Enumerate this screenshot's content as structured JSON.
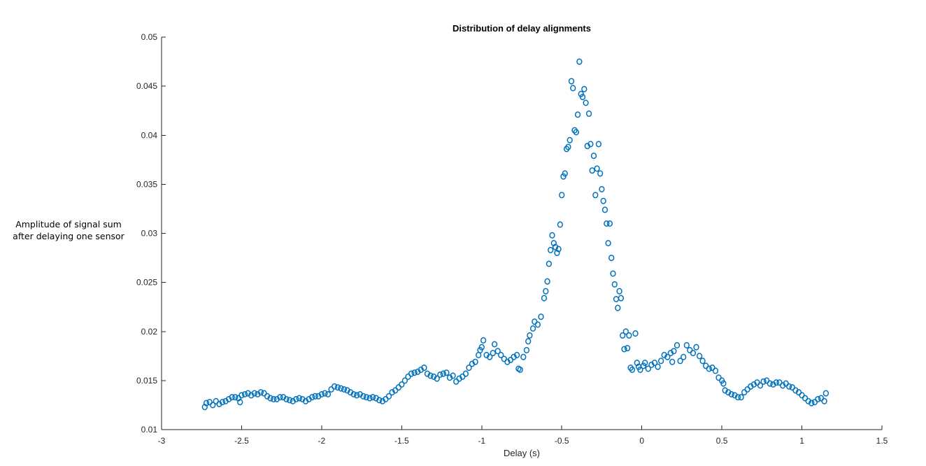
{
  "chart_data": {
    "type": "scatter",
    "title": "Distribution of delay alignments",
    "xlabel": "Delay (s)",
    "ylabel": [
      "Amplitude of signal sum",
      "after delaying one sensor"
    ],
    "xlim": [
      -3,
      1.5
    ],
    "ylim": [
      0.01,
      0.05
    ],
    "xticks": [
      -3,
      -2.5,
      -2,
      -1.5,
      -1,
      -0.5,
      0,
      0.5,
      1,
      1.5
    ],
    "xtick_labels": [
      "-3",
      "-2.5",
      "-2",
      "-1.5",
      "-1",
      "-0.5",
      "0",
      "0.5",
      "1",
      "1.5"
    ],
    "yticks": [
      0.01,
      0.015,
      0.02,
      0.025,
      0.03,
      0.035,
      0.04,
      0.045,
      0.05
    ],
    "ytick_labels": [
      "0.01",
      "0.015",
      "0.02",
      "0.025",
      "0.03",
      "0.035",
      "0.04",
      "0.045",
      "0.05"
    ],
    "marker": "circle-open",
    "color": "#0072BD",
    "grid": false,
    "points": [
      [
        -2.73,
        0.0123
      ],
      [
        -2.72,
        0.0127
      ],
      [
        -2.7,
        0.0128
      ],
      [
        -2.68,
        0.0125
      ],
      [
        -2.66,
        0.0129
      ],
      [
        -2.64,
        0.0126
      ],
      [
        -2.62,
        0.0128
      ],
      [
        -2.6,
        0.0129
      ],
      [
        -2.58,
        0.0131
      ],
      [
        -2.56,
        0.0133
      ],
      [
        -2.54,
        0.0133
      ],
      [
        -2.52,
        0.0132
      ],
      [
        -2.51,
        0.0128
      ],
      [
        -2.5,
        0.0135
      ],
      [
        -2.48,
        0.0136
      ],
      [
        -2.46,
        0.0137
      ],
      [
        -2.44,
        0.0135
      ],
      [
        -2.42,
        0.0137
      ],
      [
        -2.4,
        0.0136
      ],
      [
        -2.38,
        0.0138
      ],
      [
        -2.36,
        0.0137
      ],
      [
        -2.34,
        0.0134
      ],
      [
        -2.32,
        0.0132
      ],
      [
        -2.3,
        0.0131
      ],
      [
        -2.28,
        0.0131
      ],
      [
        -2.26,
        0.0133
      ],
      [
        -2.24,
        0.0133
      ],
      [
        -2.22,
        0.0131
      ],
      [
        -2.2,
        0.013
      ],
      [
        -2.18,
        0.0129
      ],
      [
        -2.16,
        0.0131
      ],
      [
        -2.14,
        0.0132
      ],
      [
        -2.12,
        0.0131
      ],
      [
        -2.1,
        0.0129
      ],
      [
        -2.08,
        0.0131
      ],
      [
        -2.06,
        0.0133
      ],
      [
        -2.04,
        0.0134
      ],
      [
        -2.02,
        0.0134
      ],
      [
        -2.0,
        0.0136
      ],
      [
        -1.98,
        0.0137
      ],
      [
        -1.96,
        0.0136
      ],
      [
        -1.94,
        0.0141
      ],
      [
        -1.92,
        0.0144
      ],
      [
        -1.9,
        0.0143
      ],
      [
        -1.88,
        0.0142
      ],
      [
        -1.86,
        0.0141
      ],
      [
        -1.84,
        0.014
      ],
      [
        -1.82,
        0.0138
      ],
      [
        -1.8,
        0.0136
      ],
      [
        -1.78,
        0.0135
      ],
      [
        -1.76,
        0.0136
      ],
      [
        -1.74,
        0.0134
      ],
      [
        -1.72,
        0.0133
      ],
      [
        -1.7,
        0.0132
      ],
      [
        -1.68,
        0.0133
      ],
      [
        -1.66,
        0.0132
      ],
      [
        -1.64,
        0.013
      ],
      [
        -1.62,
        0.0129
      ],
      [
        -1.6,
        0.0131
      ],
      [
        -1.58,
        0.0134
      ],
      [
        -1.56,
        0.0138
      ],
      [
        -1.54,
        0.014
      ],
      [
        -1.52,
        0.0143
      ],
      [
        -1.5,
        0.0146
      ],
      [
        -1.48,
        0.015
      ],
      [
        -1.46,
        0.0154
      ],
      [
        -1.44,
        0.0157
      ],
      [
        -1.42,
        0.0158
      ],
      [
        -1.4,
        0.0159
      ],
      [
        -1.38,
        0.0161
      ],
      [
        -1.36,
        0.0163
      ],
      [
        -1.34,
        0.0157
      ],
      [
        -1.32,
        0.0155
      ],
      [
        -1.3,
        0.0154
      ],
      [
        -1.28,
        0.0152
      ],
      [
        -1.26,
        0.0156
      ],
      [
        -1.24,
        0.0157
      ],
      [
        -1.22,
        0.0158
      ],
      [
        -1.2,
        0.0153
      ],
      [
        -1.18,
        0.0155
      ],
      [
        -1.16,
        0.0149
      ],
      [
        -1.14,
        0.0152
      ],
      [
        -1.12,
        0.0154
      ],
      [
        -1.1,
        0.0157
      ],
      [
        -1.08,
        0.0163
      ],
      [
        -1.06,
        0.0167
      ],
      [
        -1.04,
        0.0169
      ],
      [
        -1.02,
        0.0176
      ],
      [
        -1.01,
        0.0181
      ],
      [
        -1.0,
        0.0184
      ],
      [
        -0.99,
        0.0191
      ],
      [
        -0.97,
        0.0176
      ],
      [
        -0.95,
        0.0174
      ],
      [
        -0.93,
        0.0178
      ],
      [
        -0.92,
        0.0187
      ],
      [
        -0.9,
        0.018
      ],
      [
        -0.88,
        0.0176
      ],
      [
        -0.86,
        0.0172
      ],
      [
        -0.84,
        0.0169
      ],
      [
        -0.82,
        0.0171
      ],
      [
        -0.8,
        0.0174
      ],
      [
        -0.78,
        0.0176
      ],
      [
        -0.77,
        0.0162
      ],
      [
        -0.76,
        0.0161
      ],
      [
        -0.74,
        0.0174
      ],
      [
        -0.72,
        0.0181
      ],
      [
        -0.71,
        0.019
      ],
      [
        -0.7,
        0.0196
      ],
      [
        -0.68,
        0.0203
      ],
      [
        -0.67,
        0.021
      ],
      [
        -0.65,
        0.0207
      ],
      [
        -0.63,
        0.0215
      ],
      [
        -0.61,
        0.0234
      ],
      [
        -0.6,
        0.0241
      ],
      [
        -0.59,
        0.0251
      ],
      [
        -0.58,
        0.0269
      ],
      [
        -0.57,
        0.0283
      ],
      [
        -0.56,
        0.0298
      ],
      [
        -0.55,
        0.029
      ],
      [
        -0.54,
        0.0286
      ],
      [
        -0.53,
        0.028
      ],
      [
        -0.52,
        0.0284
      ],
      [
        -0.51,
        0.0309
      ],
      [
        -0.5,
        0.0339
      ],
      [
        -0.49,
        0.0358
      ],
      [
        -0.48,
        0.0361
      ],
      [
        -0.47,
        0.0386
      ],
      [
        -0.46,
        0.0388
      ],
      [
        -0.45,
        0.0395
      ],
      [
        -0.44,
        0.0455
      ],
      [
        -0.43,
        0.0448
      ],
      [
        -0.42,
        0.0405
      ],
      [
        -0.41,
        0.0403
      ],
      [
        -0.4,
        0.0421
      ],
      [
        -0.39,
        0.0475
      ],
      [
        -0.38,
        0.0442
      ],
      [
        -0.37,
        0.0439
      ],
      [
        -0.36,
        0.0447
      ],
      [
        -0.35,
        0.0433
      ],
      [
        -0.34,
        0.0389
      ],
      [
        -0.33,
        0.0422
      ],
      [
        -0.32,
        0.0391
      ],
      [
        -0.31,
        0.0364
      ],
      [
        -0.3,
        0.0379
      ],
      [
        -0.29,
        0.0339
      ],
      [
        -0.28,
        0.0366
      ],
      [
        -0.27,
        0.0391
      ],
      [
        -0.26,
        0.0361
      ],
      [
        -0.25,
        0.0345
      ],
      [
        -0.24,
        0.0333
      ],
      [
        -0.23,
        0.0324
      ],
      [
        -0.22,
        0.031
      ],
      [
        -0.21,
        0.029
      ],
      [
        -0.2,
        0.031
      ],
      [
        -0.19,
        0.0275
      ],
      [
        -0.18,
        0.0259
      ],
      [
        -0.17,
        0.0248
      ],
      [
        -0.16,
        0.0233
      ],
      [
        -0.15,
        0.0224
      ],
      [
        -0.14,
        0.0241
      ],
      [
        -0.13,
        0.0234
      ],
      [
        -0.12,
        0.0196
      ],
      [
        -0.11,
        0.0182
      ],
      [
        -0.1,
        0.02
      ],
      [
        -0.09,
        0.0183
      ],
      [
        -0.08,
        0.0196
      ],
      [
        -0.07,
        0.0163
      ],
      [
        -0.06,
        0.0161
      ],
      [
        -0.04,
        0.0198
      ],
      [
        -0.03,
        0.0168
      ],
      [
        -0.02,
        0.0164
      ],
      [
        -0.01,
        0.0161
      ],
      [
        0.01,
        0.0165
      ],
      [
        0.02,
        0.0168
      ],
      [
        0.04,
        0.0162
      ],
      [
        0.06,
        0.0166
      ],
      [
        0.08,
        0.0168
      ],
      [
        0.1,
        0.0164
      ],
      [
        0.12,
        0.017
      ],
      [
        0.14,
        0.0176
      ],
      [
        0.16,
        0.0174
      ],
      [
        0.18,
        0.0178
      ],
      [
        0.19,
        0.0169
      ],
      [
        0.2,
        0.018
      ],
      [
        0.22,
        0.0186
      ],
      [
        0.24,
        0.017
      ],
      [
        0.26,
        0.0174
      ],
      [
        0.28,
        0.0186
      ],
      [
        0.3,
        0.0181
      ],
      [
        0.32,
        0.0178
      ],
      [
        0.34,
        0.0184
      ],
      [
        0.36,
        0.0175
      ],
      [
        0.38,
        0.017
      ],
      [
        0.4,
        0.0165
      ],
      [
        0.42,
        0.0162
      ],
      [
        0.44,
        0.0163
      ],
      [
        0.46,
        0.016
      ],
      [
        0.48,
        0.0153
      ],
      [
        0.5,
        0.015
      ],
      [
        0.51,
        0.0147
      ],
      [
        0.52,
        0.014
      ],
      [
        0.54,
        0.0138
      ],
      [
        0.56,
        0.0136
      ],
      [
        0.58,
        0.0135
      ],
      [
        0.6,
        0.0133
      ],
      [
        0.62,
        0.0133
      ],
      [
        0.64,
        0.0138
      ],
      [
        0.66,
        0.0141
      ],
      [
        0.68,
        0.0144
      ],
      [
        0.7,
        0.0146
      ],
      [
        0.72,
        0.0148
      ],
      [
        0.74,
        0.0145
      ],
      [
        0.76,
        0.0149
      ],
      [
        0.78,
        0.015
      ],
      [
        0.8,
        0.0147
      ],
      [
        0.82,
        0.0146
      ],
      [
        0.84,
        0.0148
      ],
      [
        0.86,
        0.0148
      ],
      [
        0.88,
        0.0145
      ],
      [
        0.9,
        0.0147
      ],
      [
        0.92,
        0.0144
      ],
      [
        0.94,
        0.0143
      ],
      [
        0.96,
        0.014
      ],
      [
        0.98,
        0.0138
      ],
      [
        1.0,
        0.0135
      ],
      [
        1.02,
        0.0132
      ],
      [
        1.04,
        0.0129
      ],
      [
        1.06,
        0.0127
      ],
      [
        1.08,
        0.0128
      ],
      [
        1.1,
        0.0131
      ],
      [
        1.12,
        0.0132
      ],
      [
        1.14,
        0.0129
      ],
      [
        1.15,
        0.0137
      ]
    ]
  }
}
